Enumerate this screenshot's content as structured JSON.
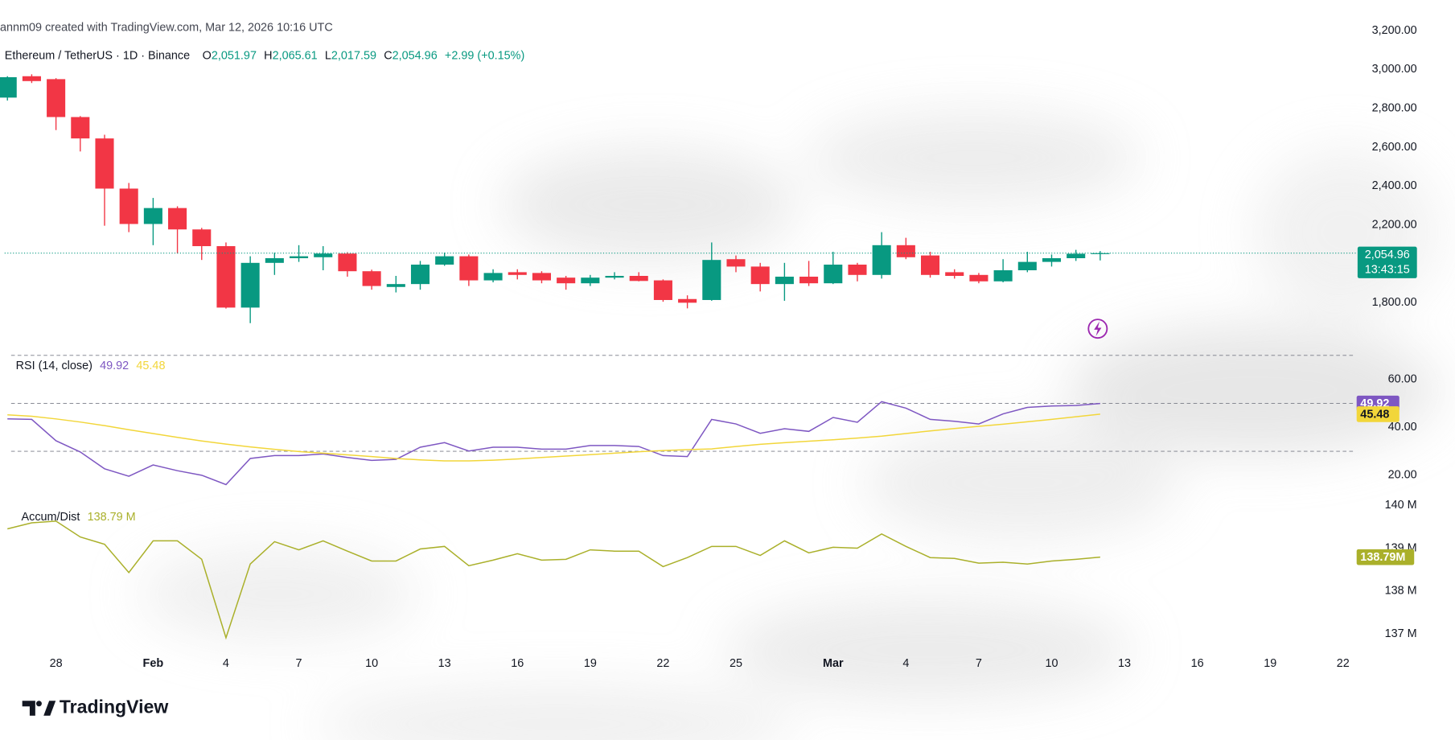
{
  "header": {
    "credit": "annm09 created with TradingView.com, Mar 12, 2026 10:16 UTC",
    "symbol": "Ethereum / TetherUS · 1D · Binance",
    "ohlc": [
      {
        "key": "O",
        "value": "2,051.97"
      },
      {
        "key": "H",
        "value": "2,065.61"
      },
      {
        "key": "L",
        "value": "2,017.59"
      },
      {
        "key": "C",
        "value": "2,054.96"
      }
    ],
    "change": "+2.99 (+0.15%)"
  },
  "brand": "TradingView",
  "chart_data": [
    {
      "type": "candlestick",
      "categories": [
        null,
        null,
        "28",
        null,
        null,
        null,
        "Feb",
        null,
        null,
        "4",
        null,
        null,
        "7",
        null,
        null,
        "10",
        null,
        null,
        "13",
        null,
        null,
        "16",
        null,
        null,
        "19",
        null,
        null,
        "22",
        null,
        null,
        "25",
        null,
        null,
        null,
        "Mar",
        null,
        null,
        "4",
        null,
        null,
        "7",
        null,
        null,
        "10",
        null,
        null,
        "13",
        null,
        null,
        "16",
        null,
        null,
        "19",
        null,
        null,
        "22"
      ],
      "open": [
        2855,
        2965,
        2950,
        2755,
        2645,
        2387,
        2205,
        2287,
        2177,
        2091,
        1775,
        2005,
        2029,
        2034,
        2053,
        1962,
        1881,
        1896,
        1996,
        2039,
        1915,
        1957,
        1953,
        1929,
        1900,
        1929,
        1938,
        1915,
        1819,
        1814,
        2024,
        1986,
        1896,
        1934,
        1900,
        1996,
        1943,
        2096,
        2043,
        1957,
        1943,
        1910,
        1967,
        2010,
        2029,
        2051.97,
        null,
        null,
        null,
        null,
        null,
        null,
        null,
        null,
        null,
        null
      ],
      "high": [
        2965,
        2975,
        2955,
        2760,
        2664,
        2416,
        2339,
        2296,
        2185,
        2110,
        2039,
        2058,
        2096,
        2091,
        2060,
        1970,
        1938,
        2015,
        2058,
        2048,
        1972,
        1972,
        1962,
        1938,
        1943,
        1957,
        1957,
        1920,
        1838,
        2110,
        2043,
        2005,
        2005,
        2015,
        2062,
        2005,
        2163,
        2134,
        2062,
        1972,
        1953,
        2024,
        2062,
        2048,
        2072,
        2065.61,
        null,
        null,
        null,
        null,
        null,
        null,
        null,
        null,
        null,
        null
      ],
      "low": [
        2840,
        2930,
        2688,
        2578,
        2196,
        2163,
        2096,
        2053,
        2020,
        1770,
        1695,
        1943,
        2010,
        1967,
        1934,
        1867,
        1853,
        1867,
        1990,
        1886,
        1905,
        1920,
        1900,
        1867,
        1886,
        1920,
        1910,
        1805,
        1771,
        1810,
        1957,
        1858,
        1810,
        1886,
        1896,
        1910,
        1924,
        2024,
        1929,
        1924,
        1900,
        1905,
        1957,
        1986,
        2015,
        2017.59,
        null,
        null,
        null,
        null,
        null,
        null,
        null,
        null,
        null,
        null
      ],
      "close": [
        2960,
        2940,
        2755,
        2645,
        2387,
        2205,
        2287,
        2177,
        2091,
        1775,
        2005,
        2029,
        2039,
        2053,
        1962,
        1886,
        1896,
        1996,
        2039,
        1915,
        1953,
        1943,
        1915,
        1900,
        1929,
        1938,
        1912,
        1814,
        1800,
        2020,
        1986,
        1896,
        1934,
        1900,
        1996,
        1943,
        2096,
        2034,
        1943,
        1938,
        1910,
        1967,
        2010,
        2029,
        2051.97,
        2054.96,
        null,
        null,
        null,
        null,
        null,
        null,
        null,
        null,
        null,
        null
      ],
      "up_color": "#089981",
      "down_color": "#f23645",
      "last_label": "2,054.96",
      "countdown": "13:43:15",
      "ylim": [
        1590,
        3356
      ],
      "yticks": [
        {
          "value": 1800,
          "label": "1,800.00"
        },
        {
          "value": 2200,
          "label": "2,200.00"
        },
        {
          "value": 2400,
          "label": "2,400.00"
        },
        {
          "value": 2600,
          "label": "2,600.00"
        },
        {
          "value": 2800,
          "label": "2,800.00"
        },
        {
          "value": 3000,
          "label": "3,000.00"
        },
        {
          "value": 3200,
          "label": "3,200.00"
        }
      ],
      "grid": false
    },
    {
      "type": "line",
      "title": "RSI (14, close)",
      "series": [
        {
          "color": "#7e57c2",
          "last_label": "49.92",
          "values": [
            43.5,
            43.3,
            34.4,
            29.7,
            22.7,
            19.6,
            24.3,
            21.9,
            20.0,
            16.1,
            27.0,
            28.2,
            28.2,
            28.9,
            27.4,
            26.2,
            26.6,
            31.7,
            33.6,
            30.1,
            31.7,
            31.7,
            30.9,
            30.9,
            32.4,
            32.4,
            32.0,
            28.2,
            27.8,
            43.3,
            41.4,
            37.5,
            39.4,
            38.3,
            44.1,
            42.1,
            50.7,
            48.0,
            43.3,
            42.5,
            41.4,
            45.6,
            48.3,
            48.9,
            49.1,
            49.92,
            null,
            null,
            null,
            null,
            null,
            null,
            null,
            null,
            null,
            null
          ]
        },
        {
          "color": "#f2d63a",
          "last_label": "45.48",
          "values": [
            45.2,
            44.6,
            43.5,
            42.2,
            40.7,
            39.0,
            37.4,
            35.8,
            34.3,
            33.0,
            31.8,
            30.8,
            29.9,
            29.2,
            28.5,
            27.8,
            27.0,
            26.4,
            26.0,
            26.0,
            26.3,
            26.8,
            27.4,
            28.0,
            28.6,
            29.2,
            29.8,
            30.3,
            30.7,
            31.0,
            32.0,
            32.9,
            33.6,
            34.2,
            34.8,
            35.5,
            36.3,
            37.4,
            38.5,
            39.5,
            40.4,
            41.3,
            42.3,
            43.3,
            44.4,
            45.48,
            null,
            null,
            null,
            null,
            null,
            null,
            null,
            null,
            null,
            null
          ]
        }
      ],
      "hlines": [
        30,
        50,
        70
      ],
      "ylim": [
        13,
        73
      ],
      "yticks": [
        {
          "value": 20,
          "label": "20.00"
        },
        {
          "value": 40,
          "label": "40.00"
        },
        {
          "value": 60,
          "label": "60.00"
        }
      ],
      "grid": false
    },
    {
      "type": "line",
      "title": "Accum/Dist",
      "series": [
        {
          "color": "#aab02a",
          "legend_label": "138.79 M",
          "last_label": "138.79M",
          "values": [
            139450000,
            139590000,
            139630000,
            139260000,
            139090000,
            138430000,
            139170000,
            139170000,
            138740000,
            136910000,
            138630000,
            139150000,
            138960000,
            139170000,
            138930000,
            138700000,
            138700000,
            138980000,
            139040000,
            138590000,
            138720000,
            138870000,
            138720000,
            138740000,
            138960000,
            138930000,
            138930000,
            138570000,
            138780000,
            139040000,
            139040000,
            138830000,
            139170000,
            138890000,
            139020000,
            139000000,
            139330000,
            139040000,
            138780000,
            138760000,
            138650000,
            138670000,
            138630000,
            138700000,
            138740000,
            138790000,
            null,
            null,
            null,
            null,
            null,
            null,
            null,
            null,
            null,
            null
          ]
        }
      ],
      "ylim": [
        136630000,
        140200000
      ],
      "yticks": [
        {
          "value": 137000000,
          "label": "137 M"
        },
        {
          "value": 138000000,
          "label": "138 M"
        },
        {
          "value": 139000000,
          "label": "139 M"
        },
        {
          "value": 140000000,
          "label": "140 M"
        }
      ],
      "grid": false
    }
  ]
}
